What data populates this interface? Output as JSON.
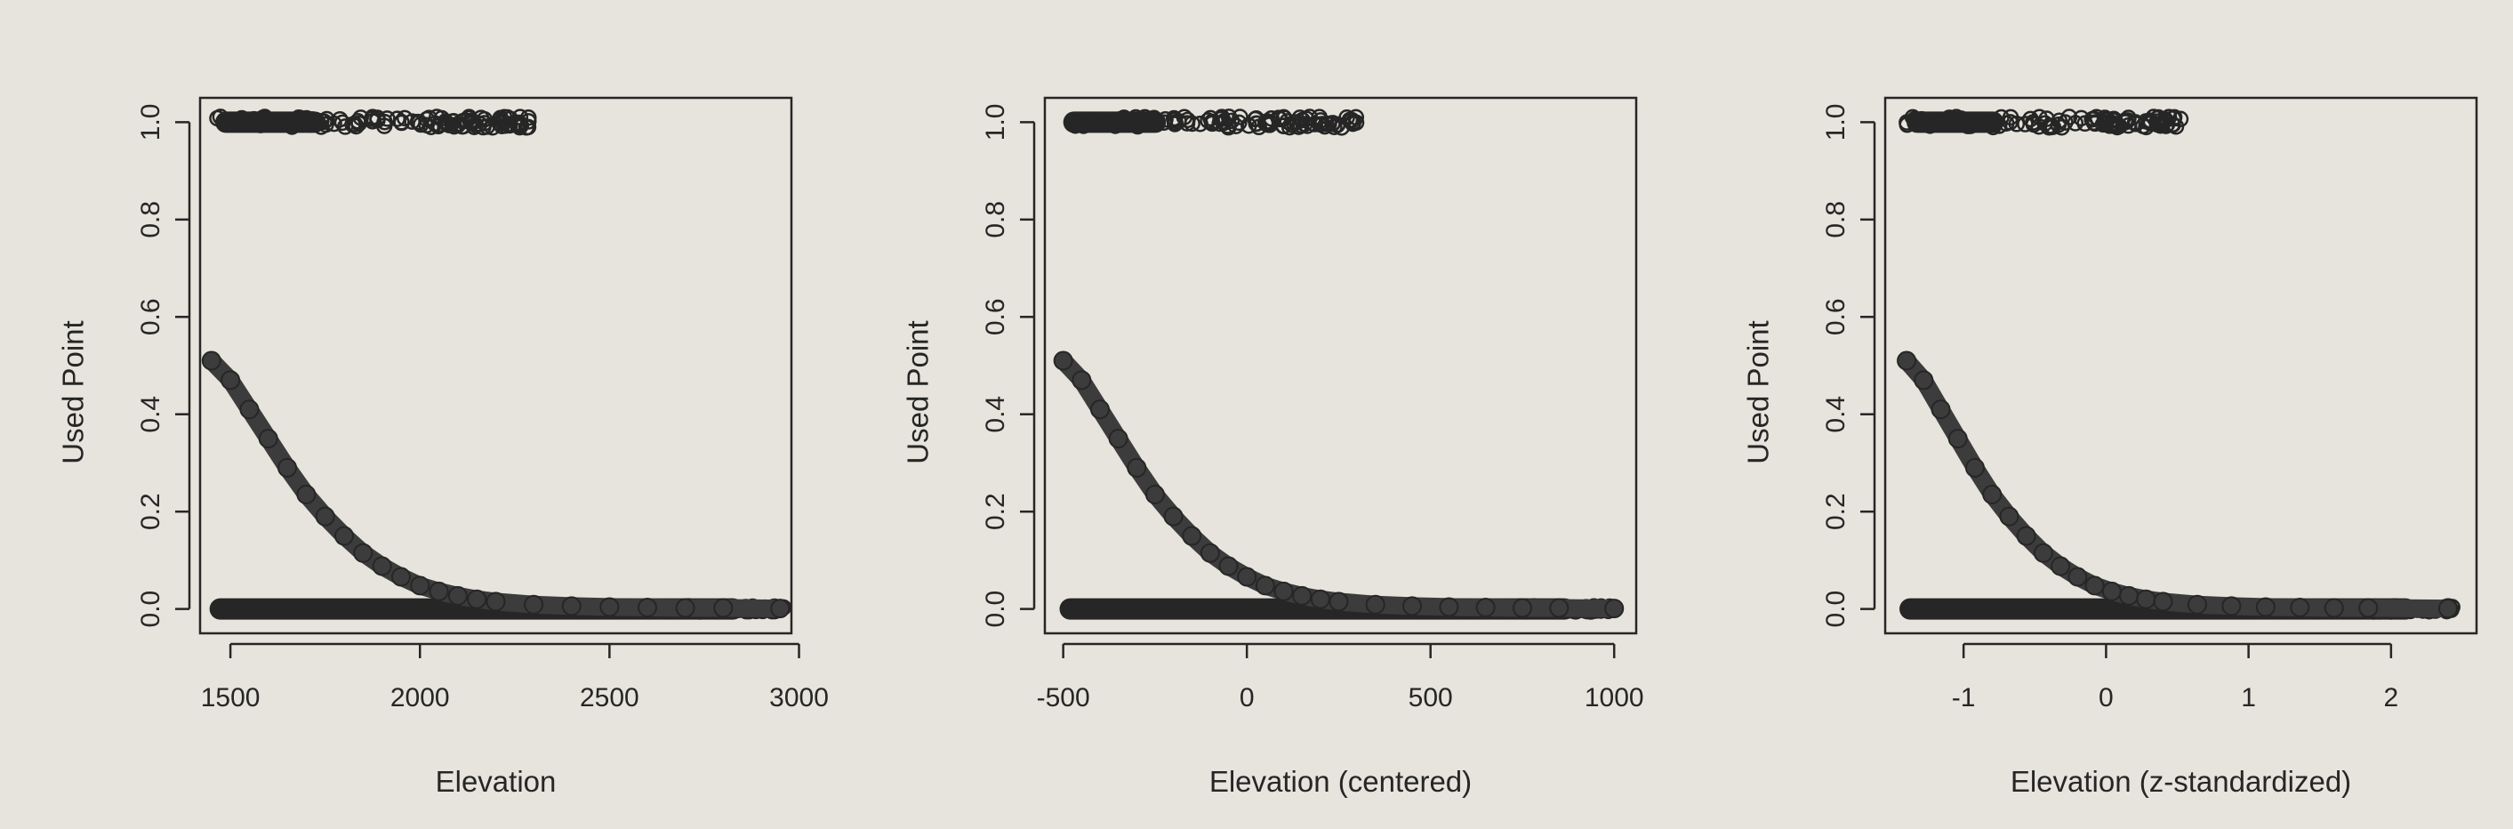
{
  "chart_data": [
    {
      "type": "scatter",
      "xlabel": "Elevation",
      "ylabel": "Used Point",
      "xlim": [
        1420,
        2980
      ],
      "ylim": [
        -0.05,
        1.05
      ],
      "xticks": [
        1500,
        2000,
        2500,
        3000
      ],
      "xtick_labels": [
        "1500",
        "2000",
        "2500",
        "3000"
      ],
      "yticks": [
        0.0,
        0.2,
        0.4,
        0.6,
        0.8,
        1.0
      ],
      "ytick_labels": [
        "0.0",
        "0.2",
        "0.4",
        "0.6",
        "0.8",
        "1.0"
      ],
      "series": [
        {
          "role": "used",
          "y": 1.0,
          "x_range": [
            1460,
            2290
          ]
        },
        {
          "role": "available",
          "y": 0.0,
          "x_range": [
            1445,
            2960
          ]
        },
        {
          "role": "fitted",
          "x": [
            1450,
            1500,
            1550,
            1600,
            1650,
            1700,
            1750,
            1800,
            1850,
            1900,
            1950,
            2000,
            2050,
            2100,
            2150,
            2200,
            2300,
            2400,
            2500,
            2600,
            2700,
            2800,
            2950
          ],
          "y": [
            0.51,
            0.47,
            0.41,
            0.35,
            0.29,
            0.235,
            0.19,
            0.15,
            0.115,
            0.088,
            0.066,
            0.048,
            0.036,
            0.027,
            0.02,
            0.015,
            0.009,
            0.006,
            0.004,
            0.003,
            0.002,
            0.002,
            0.001
          ]
        }
      ],
      "grid": false
    },
    {
      "type": "scatter",
      "xlabel": "Elevation (centered)",
      "ylabel": "Used Point",
      "xlim": [
        -550,
        1060
      ],
      "ylim": [
        -0.05,
        1.05
      ],
      "xticks": [
        -500,
        0,
        500,
        1000
      ],
      "xtick_labels": [
        "-500",
        "0",
        "500",
        "1000"
      ],
      "yticks": [
        0.0,
        0.2,
        0.4,
        0.6,
        0.8,
        1.0
      ],
      "ytick_labels": [
        "0.0",
        "0.2",
        "0.4",
        "0.6",
        "0.8",
        "1.0"
      ],
      "series": [
        {
          "role": "used",
          "y": 1.0,
          "x_range": [
            -500,
            300
          ]
        },
        {
          "role": "available",
          "y": 0.0,
          "x_range": [
            -510,
            1000
          ]
        },
        {
          "role": "fitted",
          "x": [
            -500,
            -450,
            -400,
            -350,
            -300,
            -250,
            -200,
            -150,
            -100,
            -50,
            0,
            50,
            100,
            150,
            200,
            250,
            350,
            450,
            550,
            650,
            750,
            850,
            1000
          ],
          "y": [
            0.51,
            0.47,
            0.41,
            0.35,
            0.29,
            0.235,
            0.19,
            0.15,
            0.115,
            0.088,
            0.066,
            0.048,
            0.036,
            0.027,
            0.02,
            0.015,
            0.009,
            0.006,
            0.004,
            0.003,
            0.002,
            0.002,
            0.001
          ]
        }
      ],
      "grid": false
    },
    {
      "type": "scatter",
      "xlabel": "Elevation (z-standardized)",
      "ylabel": "Used Point",
      "xlim": [
        -1.55,
        2.6
      ],
      "ylim": [
        -0.05,
        1.05
      ],
      "xticks": [
        -1,
        0,
        1,
        2
      ],
      "xtick_labels": [
        "-1",
        "0",
        "1",
        "2"
      ],
      "yticks": [
        0.0,
        0.2,
        0.4,
        0.6,
        0.8,
        1.0
      ],
      "ytick_labels": [
        "0.0",
        "0.2",
        "0.4",
        "0.6",
        "0.8",
        "1.0"
      ],
      "series": [
        {
          "role": "used",
          "y": 1.0,
          "x_range": [
            -1.4,
            0.55
          ]
        },
        {
          "role": "available",
          "y": 0.0,
          "x_range": [
            -1.45,
            2.45
          ]
        },
        {
          "role": "fitted",
          "x": [
            -1.4,
            -1.28,
            -1.16,
            -1.04,
            -0.92,
            -0.8,
            -0.68,
            -0.56,
            -0.44,
            -0.32,
            -0.2,
            -0.08,
            0.04,
            0.16,
            0.28,
            0.4,
            0.64,
            0.88,
            1.12,
            1.36,
            1.6,
            1.84,
            2.4
          ],
          "y": [
            0.51,
            0.47,
            0.41,
            0.35,
            0.29,
            0.235,
            0.19,
            0.15,
            0.115,
            0.088,
            0.066,
            0.048,
            0.036,
            0.027,
            0.02,
            0.015,
            0.009,
            0.006,
            0.004,
            0.003,
            0.002,
            0.002,
            0.001
          ]
        }
      ],
      "grid": false
    }
  ],
  "colors": {
    "paper": "#e6e4dc",
    "ink": "#262626",
    "fitted": "#3c3c3c"
  }
}
